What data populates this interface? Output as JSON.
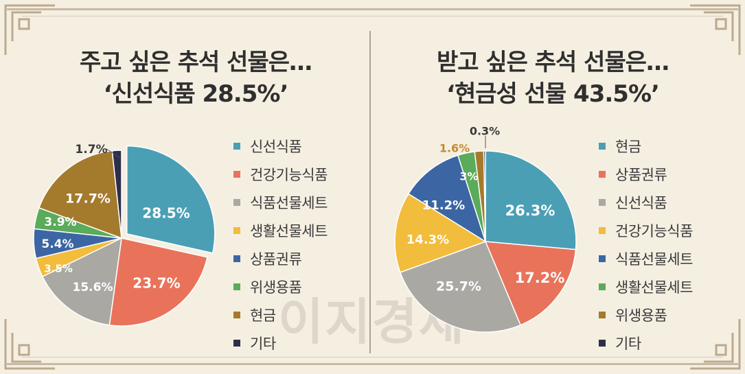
{
  "colors": {
    "teal": "#4a9fb5",
    "coral": "#e8735a",
    "gray": "#a9a8a3",
    "yellow": "#f2bc3c",
    "blue": "#3b66a3",
    "green": "#5aab5a",
    "brown": "#a47a2c",
    "navy": "#2c2e4a"
  },
  "left_title": {
    "line1": "주고 싶은 추석 선물은…",
    "line2": "‘신선식품 28.5%’"
  },
  "right_title": {
    "line1": "받고 싶은 추석 선물은…",
    "line2": "‘현금성 선물 43.5%’"
  },
  "watermark": "이지경제",
  "chart_data": [
    {
      "type": "pie",
      "title": "주고 싶은 추석 선물은… ‘신선식품 28.5%’",
      "slices": [
        {
          "label": "신선식품",
          "value": 28.5,
          "value_label": "28.5%",
          "color": "#4a9fb5"
        },
        {
          "label": "건강기능식품",
          "value": 23.7,
          "value_label": "23.7%",
          "color": "#e8735a"
        },
        {
          "label": "식품선물세트",
          "value": 15.6,
          "value_label": "15.6%",
          "color": "#a9a8a3"
        },
        {
          "label": "생활선물세트",
          "value": 3.5,
          "value_label": "3.5%",
          "color": "#f2bc3c"
        },
        {
          "label": "상품권류",
          "value": 5.4,
          "value_label": "5.4%",
          "color": "#3b66a3"
        },
        {
          "label": "위생용품",
          "value": 3.9,
          "value_label": "3.9%",
          "color": "#5aab5a"
        },
        {
          "label": "현금",
          "value": 17.7,
          "value_label": "17.7%",
          "color": "#a47a2c"
        },
        {
          "label": "기타",
          "value": 1.7,
          "value_label": "1.7%",
          "color": "#2c2e4a"
        }
      ],
      "legend": [
        "신선식품",
        "건강기능식품",
        "식품선물세트",
        "생활선물세트",
        "상품권류",
        "위생용품",
        "현금",
        "기타"
      ],
      "legend_position": "right"
    },
    {
      "type": "pie",
      "title": "받고 싶은 추석 선물은… ‘현금성 선물 43.5%’",
      "slices": [
        {
          "label": "현금",
          "value": 26.3,
          "value_label": "26.3%",
          "color": "#4a9fb5"
        },
        {
          "label": "상품권류",
          "value": 17.2,
          "value_label": "17.2%",
          "color": "#e8735a"
        },
        {
          "label": "신선식품",
          "value": 25.7,
          "value_label": "25.7%",
          "color": "#a9a8a3"
        },
        {
          "label": "건강기능식품",
          "value": 14.3,
          "value_label": "14.3%",
          "color": "#f2bc3c"
        },
        {
          "label": "식품선물세트",
          "value": 11.2,
          "value_label": "11.2%",
          "color": "#3b66a3"
        },
        {
          "label": "생활선물세트",
          "value": 3,
          "value_label": "3%",
          "color": "#5aab5a"
        },
        {
          "label": "위생용품",
          "value": 1.6,
          "value_label": "1.6%",
          "color": "#a47a2c"
        },
        {
          "label": "기타",
          "value": 0.3,
          "value_label": "0.3%",
          "color": "#2c2e4a"
        }
      ],
      "legend": [
        "현금",
        "상품권류",
        "신선식품",
        "건강기능식품",
        "식품선물세트",
        "생활선물세트",
        "위생용품",
        "기타"
      ],
      "legend_position": "right"
    }
  ]
}
